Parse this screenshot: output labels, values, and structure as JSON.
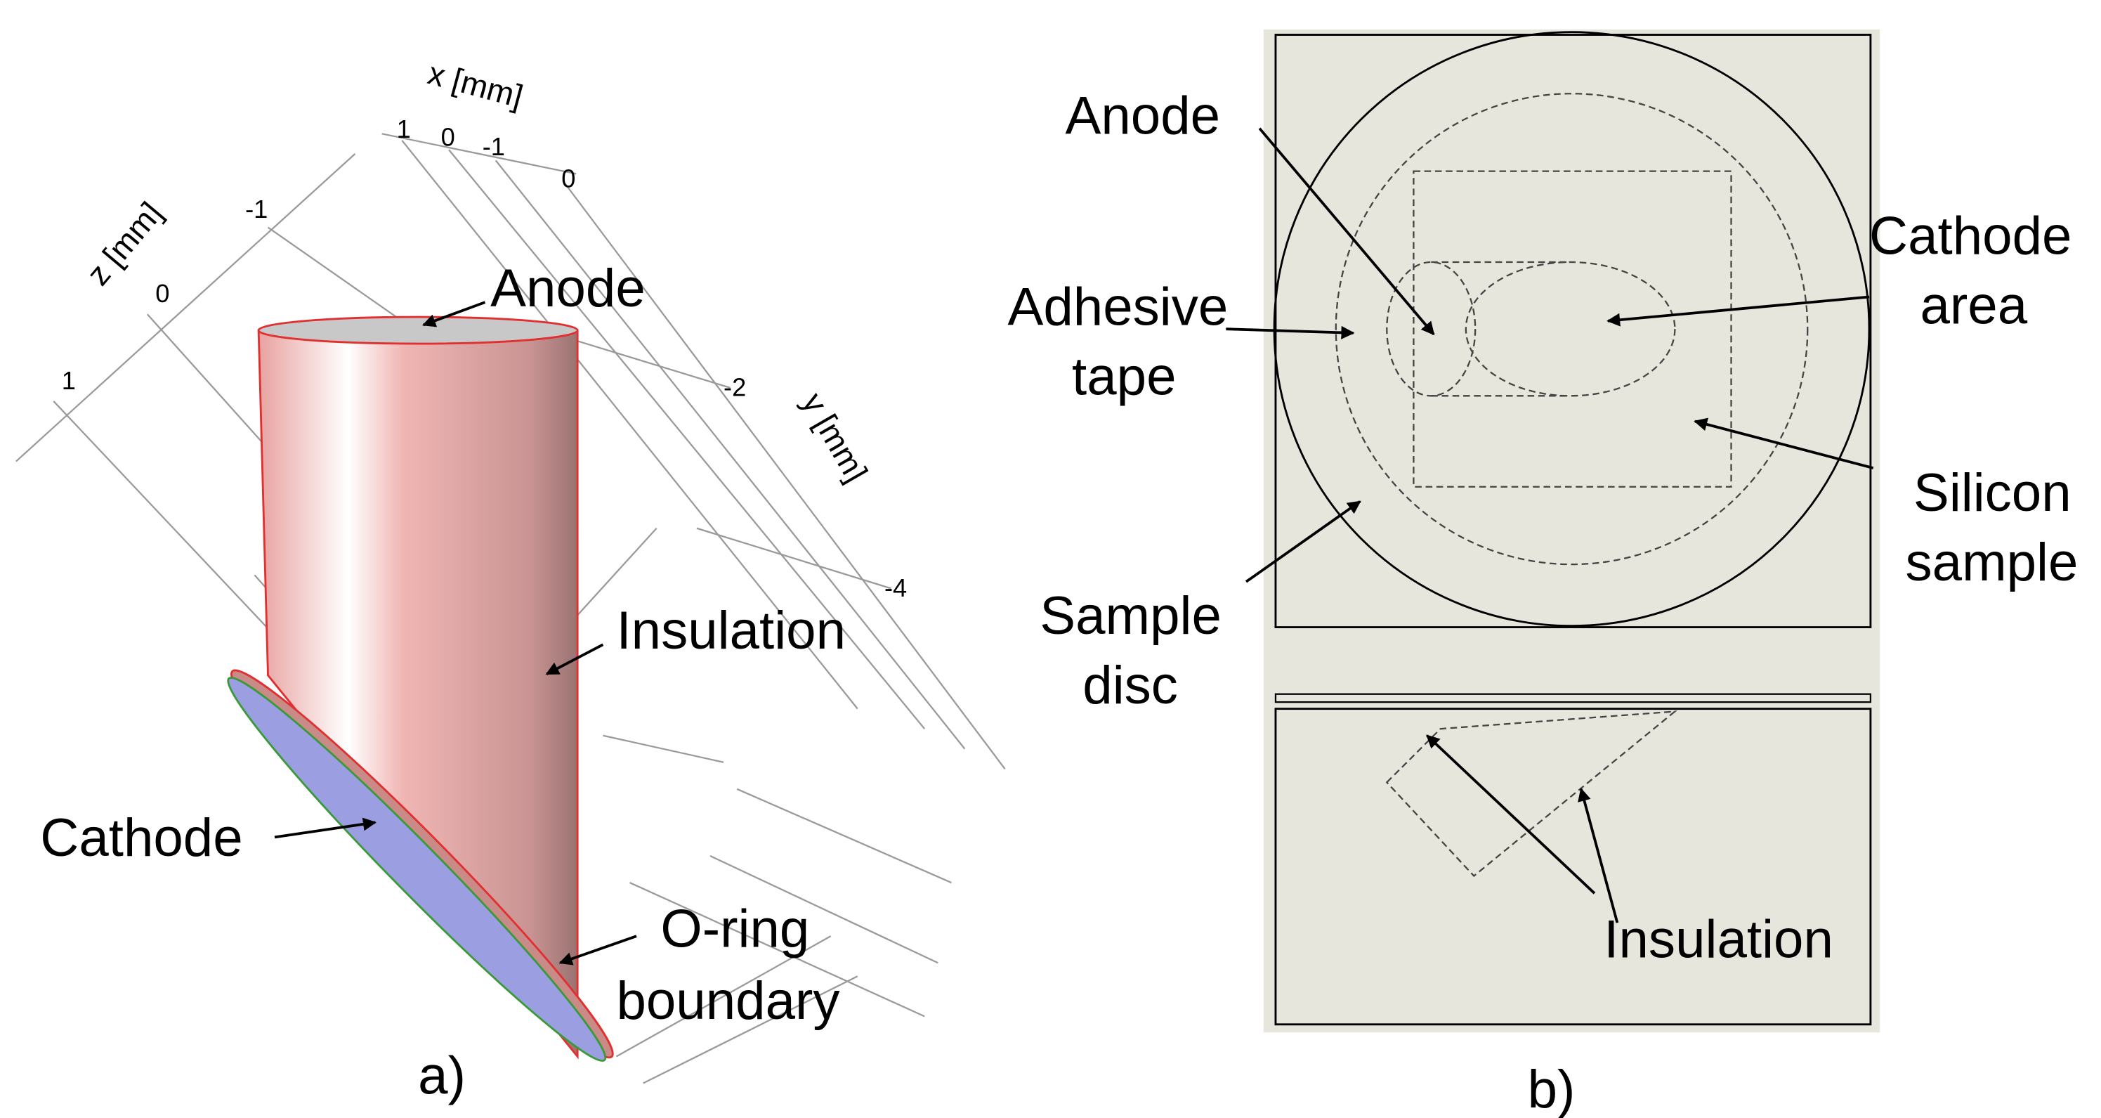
{
  "panel_a": {
    "caption": "a)",
    "axes": {
      "x": {
        "label": "x [mm]",
        "ticks": [
          "1",
          "0",
          "-1",
          "0"
        ]
      },
      "y": {
        "label": "y [mm]",
        "ticks": [
          "-2",
          "-4"
        ]
      },
      "z": {
        "label": "z [mm]",
        "ticks": [
          "-1",
          "0",
          "1"
        ]
      }
    },
    "labels": {
      "anode": [
        "Anode"
      ],
      "insulation": [
        "Insulation"
      ],
      "cathode": [
        "Cathode"
      ],
      "o_ring": [
        "O-ring",
        "boundary"
      ]
    }
  },
  "panel_b": {
    "caption": "b)",
    "labels": {
      "anode": [
        "Anode"
      ],
      "adhesive_tape": [
        "Adhesive",
        "tape"
      ],
      "cathode_area": [
        "Cathode",
        "area"
      ],
      "silicon_sample": [
        "Silicon",
        "sample"
      ],
      "sample_disc": [
        "Sample",
        "disc"
      ],
      "insulation": [
        "Insulation"
      ]
    }
  }
}
